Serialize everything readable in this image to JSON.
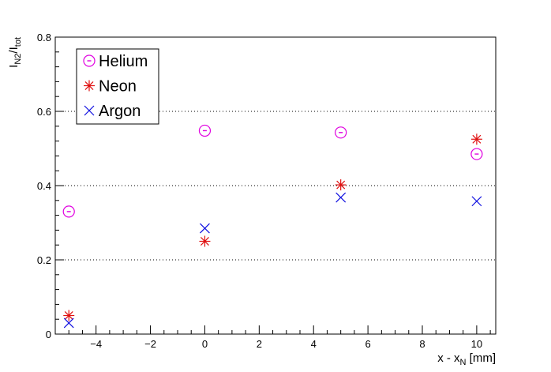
{
  "chart_data": {
    "type": "scatter",
    "title": "",
    "xlabel": {
      "main": "x - x",
      "sub": "N",
      "unit": " [mm]"
    },
    "ylabel": {
      "main": "I",
      "sub": "N2",
      "sep": "/I",
      "sub2": "tot"
    },
    "xlim": [
      -5.5,
      10.7
    ],
    "ylim": [
      0,
      0.8
    ],
    "x_ticks": [
      -4,
      -2,
      0,
      2,
      4,
      6,
      8,
      10
    ],
    "x_tick_labels": [
      "−4",
      "−2",
      "0",
      "2",
      "4",
      "6",
      "8",
      "10"
    ],
    "y_ticks": [
      0,
      0.2,
      0.4,
      0.6,
      0.8
    ],
    "y_tick_labels": [
      "0",
      "0.2",
      "0.4",
      "0.6",
      "0.8"
    ],
    "grid": {
      "y": true,
      "x": false,
      "style": "dotted"
    },
    "legend_position": "top-left",
    "series": [
      {
        "name": "Helium",
        "marker": "open-circle",
        "color": "#e000e0",
        "points": [
          {
            "x": -5,
            "y": 0.33
          },
          {
            "x": 0,
            "y": 0.548
          },
          {
            "x": 5,
            "y": 0.543
          },
          {
            "x": 10,
            "y": 0.485
          }
        ]
      },
      {
        "name": "Neon",
        "marker": "star",
        "color": "#e01010",
        "points": [
          {
            "x": -5,
            "y": 0.05
          },
          {
            "x": 0,
            "y": 0.25
          },
          {
            "x": 5,
            "y": 0.402
          },
          {
            "x": 10,
            "y": 0.525
          }
        ]
      },
      {
        "name": "Argon",
        "marker": "cross",
        "color": "#1010e0",
        "points": [
          {
            "x": -5,
            "y": 0.03
          },
          {
            "x": 0,
            "y": 0.285
          },
          {
            "x": 5,
            "y": 0.368
          },
          {
            "x": 10,
            "y": 0.358
          }
        ]
      }
    ]
  }
}
